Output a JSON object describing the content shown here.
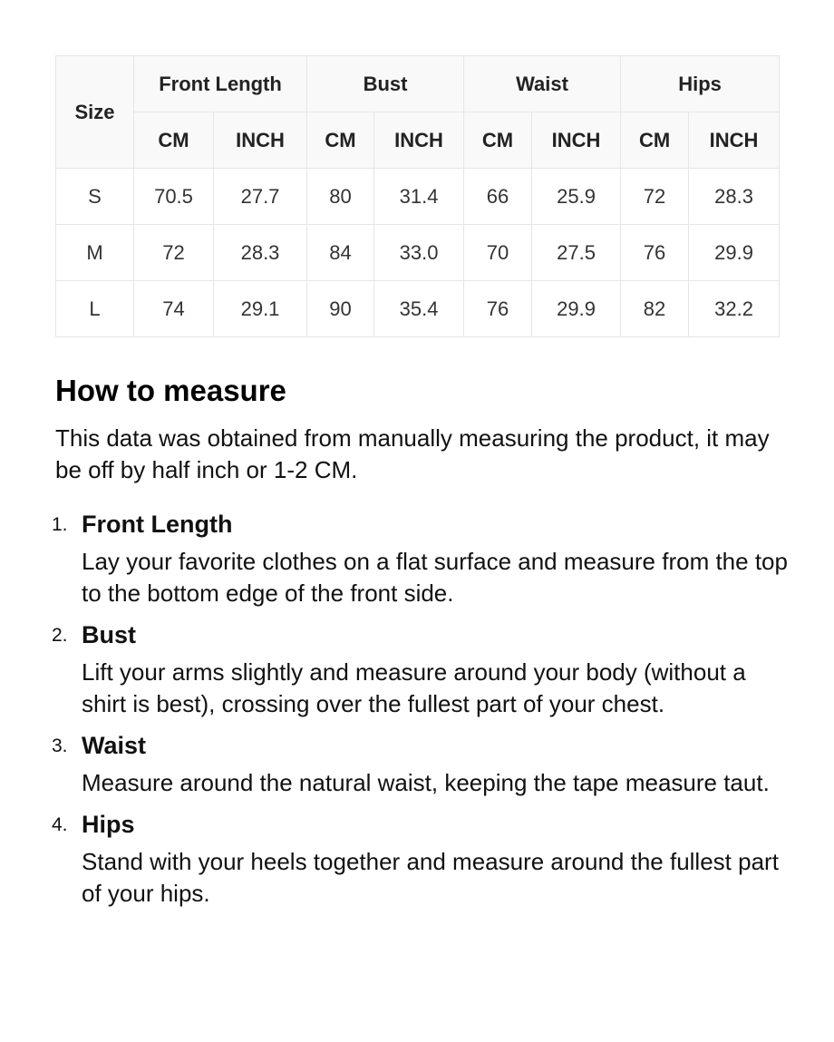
{
  "table": {
    "size_label": "Size",
    "groups": [
      "Front Length",
      "Bust",
      "Waist",
      "Hips"
    ],
    "units": [
      "CM",
      "INCH",
      "CM",
      "INCH",
      "CM",
      "INCH",
      "CM",
      "INCH"
    ],
    "rows": [
      [
        "S",
        "70.5",
        "27.7",
        "80",
        "31.4",
        "66",
        "25.9",
        "72",
        "28.3"
      ],
      [
        "M",
        "72",
        "28.3",
        "84",
        "33.0",
        "70",
        "27.5",
        "76",
        "29.9"
      ],
      [
        "L",
        "74",
        "29.1",
        "90",
        "35.4",
        "76",
        "29.9",
        "82",
        "32.2"
      ]
    ]
  },
  "howto": {
    "title": "How to measure",
    "intro": "This data was obtained from manually measuring the product, it may be off by half inch or 1-2 CM.",
    "items": [
      {
        "num": "1.",
        "title": "Front Length",
        "desc": "Lay your favorite clothes on a flat surface and measure from the top to the bottom edge of the front side."
      },
      {
        "num": "2.",
        "title": "Bust",
        "desc": "Lift your arms slightly and measure around your body (without a shirt is best), crossing over the fullest part of your chest."
      },
      {
        "num": "3.",
        "title": "Waist",
        "desc": "Measure around the natural waist, keeping the tape measure taut."
      },
      {
        "num": "4.",
        "title": "Hips",
        "desc": "Stand with your heels together and measure around the fullest part of your hips."
      }
    ]
  }
}
